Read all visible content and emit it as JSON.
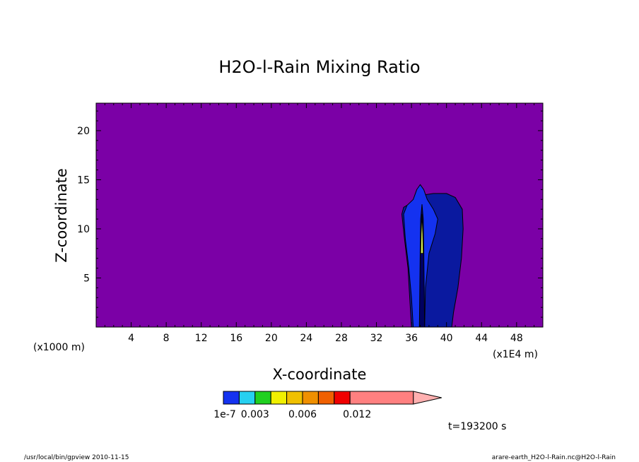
{
  "chart_data": {
    "type": "contour",
    "title": "H2O-l-Rain Mixing Ratio",
    "xlabel": "X-coordinate",
    "ylabel": "Z-coordinate",
    "x_unit": "(x1E4 m)",
    "y_unit": "(x1000 m)",
    "xlim": [
      0,
      51
    ],
    "ylim": [
      0,
      22.8
    ],
    "xticks": [
      4,
      8,
      12,
      16,
      20,
      24,
      28,
      32,
      36,
      40,
      44,
      48
    ],
    "yticks": [
      5,
      10,
      15,
      20
    ],
    "background_color": "#7b00a6",
    "contour_levels": [
      {
        "name": "outer",
        "color": "#0a199f",
        "points": [
          [
            36.0,
            0
          ],
          [
            35.8,
            3
          ],
          [
            35.6,
            6
          ],
          [
            35.2,
            9
          ],
          [
            34.9,
            11.5
          ],
          [
            35.1,
            12.2
          ],
          [
            35.7,
            12.5
          ],
          [
            36.3,
            13.0
          ],
          [
            37.0,
            13.4
          ],
          [
            38.5,
            13.6
          ],
          [
            40.0,
            13.6
          ],
          [
            41.0,
            13.2
          ],
          [
            41.8,
            12.0
          ],
          [
            41.9,
            10.0
          ],
          [
            41.7,
            7.0
          ],
          [
            41.3,
            4.0
          ],
          [
            40.8,
            1.5
          ],
          [
            40.6,
            0
          ]
        ]
      },
      {
        "name": "mid",
        "color": "#1432f0",
        "points": [
          [
            36.2,
            0
          ],
          [
            36.0,
            3
          ],
          [
            35.7,
            6
          ],
          [
            35.3,
            9
          ],
          [
            35.1,
            11.5
          ],
          [
            35.5,
            12.4
          ],
          [
            36.2,
            13.0
          ],
          [
            36.6,
            14.0
          ],
          [
            37.0,
            14.5
          ],
          [
            37.4,
            14.0
          ],
          [
            37.8,
            13.0
          ],
          [
            38.5,
            12.0
          ],
          [
            39.0,
            11.0
          ],
          [
            38.7,
            9.5
          ],
          [
            38.0,
            7.5
          ],
          [
            37.6,
            4.0
          ],
          [
            37.5,
            0
          ]
        ]
      },
      {
        "name": "core-dark",
        "color": "#000060",
        "points": [
          [
            36.9,
            0
          ],
          [
            36.95,
            4
          ],
          [
            37.0,
            8
          ],
          [
            37.05,
            11
          ],
          [
            37.2,
            12.5
          ],
          [
            37.35,
            11
          ],
          [
            37.4,
            8
          ],
          [
            37.45,
            4
          ],
          [
            37.5,
            0
          ]
        ]
      },
      {
        "name": "core-light",
        "color": "#d8f050",
        "points": [
          [
            37.05,
            7.5
          ],
          [
            37.1,
            9.5
          ],
          [
            37.2,
            11.5
          ],
          [
            37.3,
            9.5
          ],
          [
            37.35,
            7.5
          ]
        ]
      }
    ],
    "colorbar": {
      "colors": [
        "#1432f0",
        "#26d0f0",
        "#20d020",
        "#f0f000",
        "#f0c000",
        "#f09000",
        "#f06000",
        "#f00000",
        "#ff8080"
      ],
      "widths": [
        1,
        1,
        1,
        1,
        1,
        1,
        1,
        1,
        4
      ],
      "labels": [
        "1e-7",
        "0.003",
        "0.006",
        "0.012"
      ],
      "arrow_color": "#ffb0b0"
    },
    "time_label": "t=193200 s"
  },
  "footer": {
    "left": "/usr/local/bin/gpview  2010-11-15",
    "right": "arare-earth_H2O-l-Rain.nc@H2O-l-Rain"
  }
}
